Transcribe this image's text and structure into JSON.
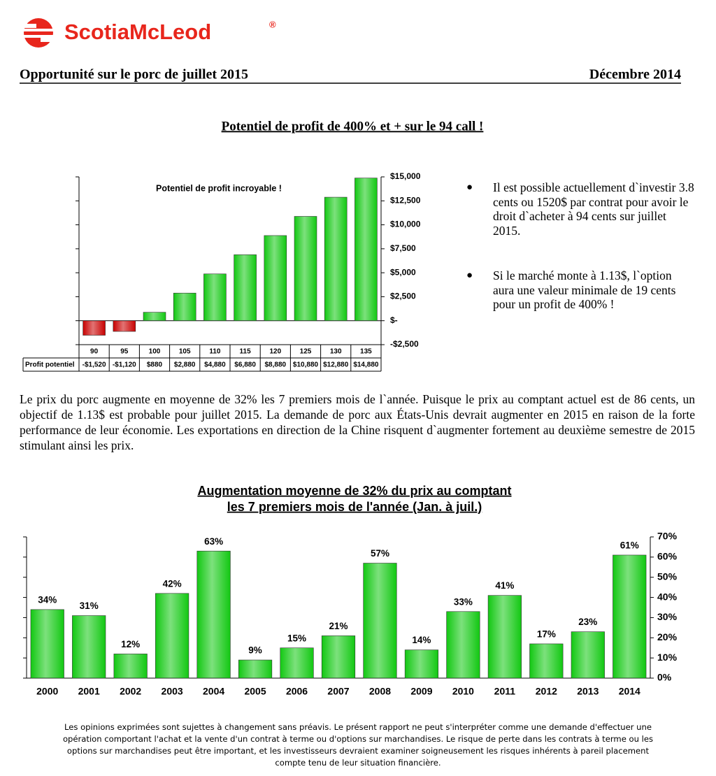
{
  "header": {
    "brand": "ScotiaMcLeod",
    "brand_mark": "®",
    "title": "Opportunité sur le porc de juillet 2015",
    "date": "Décembre 2014",
    "headline": "Potentiel de profit de 400% et + sur le 94 call !"
  },
  "bullets": [
    "Il est possible actuellement d`investir 3.8 cents ou 1520$ par contrat pour avoir le droit d`acheter à 94 cents sur juillet 2015.",
    "Si le marché monte à 1.13$, l`option aura une valeur minimale de 19 cents pour un profit de 400% !"
  ],
  "paragraph": "Le prix du porc augmente en moyenne de 32% les 7 premiers mois de l`année. Puisque le prix au comptant actuel est de 86 cents, un objectif de 1.13$ est probable pour juillet 2015. La demande de porc aux États-Unis devrait augmenter en 2015 en raison de la forte performance de leur économie. Les exportations en direction de la Chine risquent d`augmenter fortement au deuxième semestre de 2015 stimulant ainsi les prix.",
  "chart_data": [
    {
      "type": "bar",
      "title": "Potentiel de profit incroyable !",
      "row_label": "Profit potentiel",
      "categories": [
        "90",
        "95",
        "100",
        "105",
        "110",
        "115",
        "120",
        "125",
        "130",
        "135"
      ],
      "values": [
        -1520,
        -1120,
        880,
        2880,
        4880,
        6880,
        8880,
        10880,
        12880,
        14880
      ],
      "value_labels": [
        "-$1,520",
        "-$1,120",
        "$880",
        "$2,880",
        "$4,880",
        "$6,880",
        "$8,880",
        "$10,880",
        "$12,880",
        "$14,880"
      ],
      "color": "#12c812",
      "negative_color": "#c80000",
      "ylim": [
        -2500,
        15000
      ],
      "yticks": [
        {
          "value": -2500,
          "label": "-$2,500"
        },
        {
          "value": 0,
          "label": "$-"
        },
        {
          "value": 2500,
          "label": "$2,500"
        },
        {
          "value": 5000,
          "label": "$5,000"
        },
        {
          "value": 7500,
          "label": "$7,500"
        },
        {
          "value": 10000,
          "label": "$10,000"
        },
        {
          "value": 12500,
          "label": "$12,500"
        },
        {
          "value": 15000,
          "label": "$15,000"
        }
      ]
    },
    {
      "type": "bar",
      "title": [
        "Augmentation moyenne de 32% du prix au comptant",
        "les 7 premiers mois de l'année (Jan. à juil.)"
      ],
      "categories": [
        "2000",
        "2001",
        "2002",
        "2003",
        "2004",
        "2005",
        "2006",
        "2007",
        "2008",
        "2009",
        "2010",
        "2011",
        "2012",
        "2013",
        "2014"
      ],
      "values": [
        34,
        31,
        12,
        42,
        63,
        9,
        15,
        21,
        57,
        14,
        33,
        41,
        17,
        23,
        61
      ],
      "value_labels": [
        "34%",
        "31%",
        "12%",
        "42%",
        "63%",
        "9%",
        "15%",
        "21%",
        "57%",
        "14%",
        "33%",
        "41%",
        "17%",
        "23%",
        "61%"
      ],
      "color": "#12c812",
      "ylim": [
        0,
        70
      ],
      "yticks": [
        {
          "value": 0,
          "label": "0%"
        },
        {
          "value": 10,
          "label": "10%"
        },
        {
          "value": 20,
          "label": "20%"
        },
        {
          "value": 30,
          "label": "30%"
        },
        {
          "value": 40,
          "label": "40%"
        },
        {
          "value": 50,
          "label": "50%"
        },
        {
          "value": 60,
          "label": "60%"
        },
        {
          "value": 70,
          "label": "70%"
        }
      ]
    }
  ],
  "disclaimer": [
    "Les opinions exprimées sont sujettes à changement sans préavis. Le présent rapport ne peut s'interpréter comme une demande d'effectuer une",
    "opération comportant l'achat et la vente d'un contrat à terme ou d'options sur marchandises. Le risque de perte dans les contrats à terme ou les",
    "options sur marchandises peut être important, et les investisseurs devraient examiner soigneusement les risques inhérents à pareil placement",
    "compte tenu de leur situation financière."
  ]
}
